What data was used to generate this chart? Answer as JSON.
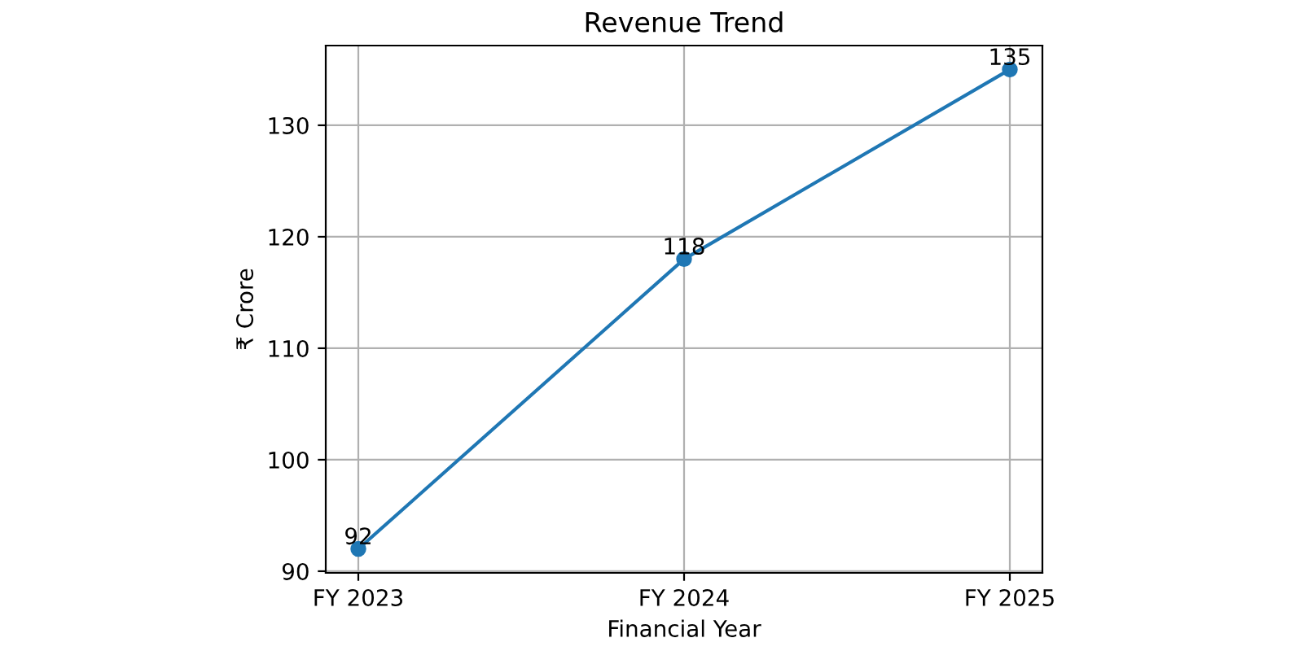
{
  "chart_data": {
    "type": "line",
    "title": "Revenue Trend",
    "xlabel": "Financial Year",
    "ylabel": "₹ Crore",
    "categories": [
      "FY 2023",
      "FY 2024",
      "FY 2025"
    ],
    "series": [
      {
        "color": "#1f77b4",
        "values": [
          92,
          118,
          135
        ]
      }
    ],
    "ylim": [
      89.85,
      137.15
    ],
    "yticks": [
      90,
      100,
      110,
      120,
      130
    ],
    "grid": true,
    "marker": "circle",
    "data_labels": true
  }
}
